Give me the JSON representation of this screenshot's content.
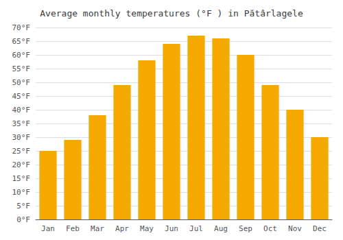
{
  "chart_data": {
    "type": "bar",
    "title": "Average monthly temperatures (°F ) in Pătârlagele",
    "categories": [
      "Jan",
      "Feb",
      "Mar",
      "Apr",
      "May",
      "Jun",
      "Jul",
      "Aug",
      "Sep",
      "Oct",
      "Nov",
      "Dec"
    ],
    "values": [
      25,
      29,
      38,
      49,
      58,
      64,
      67,
      66,
      60,
      49,
      40,
      30
    ],
    "color": "#F5A800",
    "ylim": [
      0,
      70
    ],
    "yticks": [
      {
        "value": 0,
        "label": "0°F"
      },
      {
        "value": 5,
        "label": "5°F"
      },
      {
        "value": 10,
        "label": "10°F"
      },
      {
        "value": 15,
        "label": "15°F"
      },
      {
        "value": 20,
        "label": "20°F"
      },
      {
        "value": 25,
        "label": "25°F"
      },
      {
        "value": 30,
        "label": "30°F"
      },
      {
        "value": 35,
        "label": "35°F"
      },
      {
        "value": 40,
        "label": "40°F"
      },
      {
        "value": 45,
        "label": "45°F"
      },
      {
        "value": 50,
        "label": "50°F"
      },
      {
        "value": 55,
        "label": "55°F"
      },
      {
        "value": 60,
        "label": "60°F"
      },
      {
        "value": 65,
        "label": "65°F"
      },
      {
        "value": 70,
        "label": "70°F"
      }
    ],
    "grid": true
  }
}
